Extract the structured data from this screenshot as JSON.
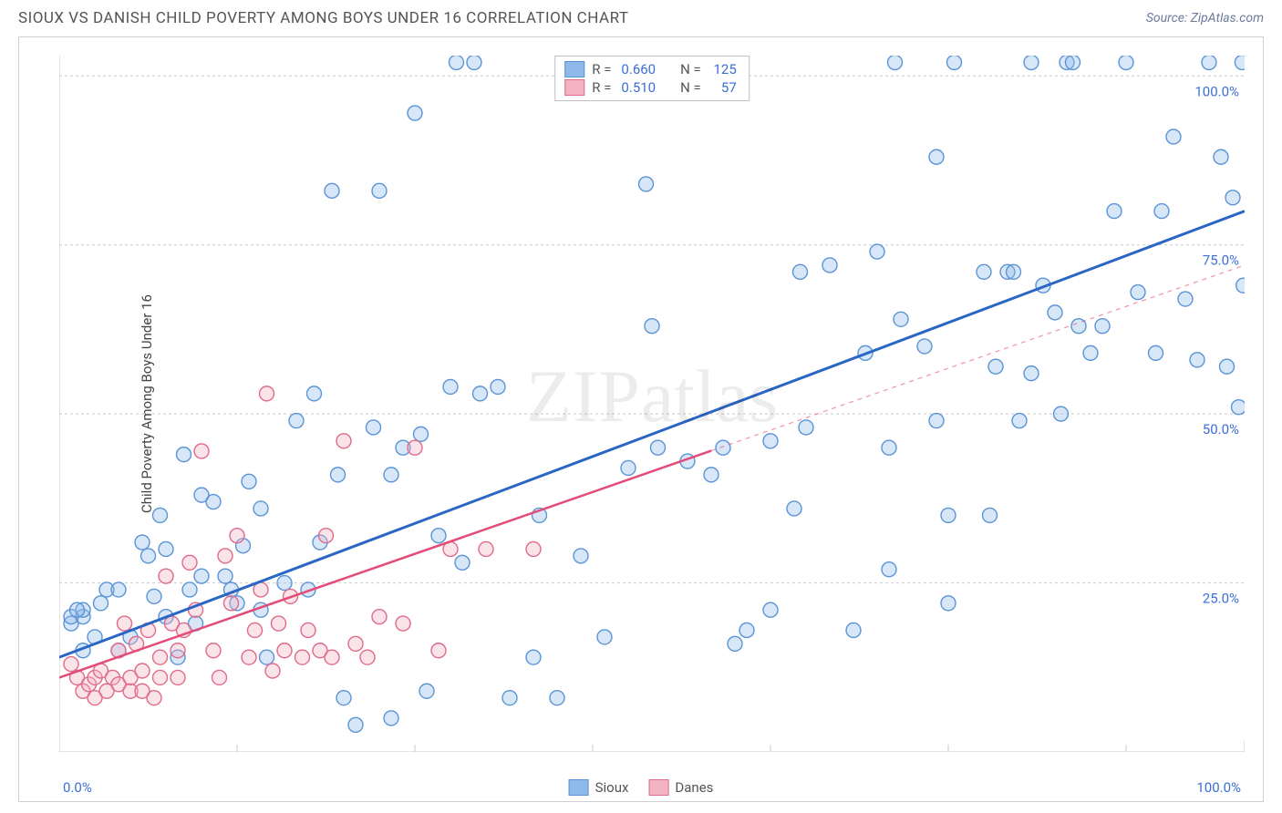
{
  "title": "SIOUX VS DANISH CHILD POVERTY AMONG BOYS UNDER 16 CORRELATION CHART",
  "source_label": "Source: ",
  "source_name": "ZipAtlas.com",
  "watermark": "ZIPatlas",
  "chart": {
    "type": "scatter",
    "ylabel": "Child Poverty Among Boys Under 16",
    "xlim": [
      0,
      100
    ],
    "ylim": [
      0,
      103
    ],
    "x_ticks": [
      0,
      100
    ],
    "x_tick_labels": [
      "0.0%",
      "100.0%"
    ],
    "x_minor_ticks": [
      15,
      30,
      45,
      60,
      75,
      90
    ],
    "y_gridlines": [
      25,
      50,
      75,
      100
    ],
    "y_tick_labels": [
      "25.0%",
      "50.0%",
      "75.0%",
      "100.0%"
    ],
    "background_color": "#ffffff",
    "grid_color": "#c9c9c9",
    "grid_dash": "3 3",
    "marker_radius": 8,
    "marker_fill_opacity": 0.35,
    "marker_stroke_width": 1.4,
    "series": [
      {
        "name": "Sioux",
        "color_fill": "#8fb9e8",
        "color_stroke": "#5a94d6",
        "line_color": "#2a66c4",
        "line_width": 3,
        "trend": {
          "x1": 0,
          "y1": 14,
          "x2": 100,
          "y2": 80
        },
        "trend_dashed_from_x": null,
        "R": "0.660",
        "N": "125",
        "points": [
          [
            1,
            19
          ],
          [
            1,
            20
          ],
          [
            2,
            20
          ],
          [
            2,
            21
          ],
          [
            1.5,
            21
          ],
          [
            2,
            15
          ],
          [
            3,
            17
          ],
          [
            3.5,
            22
          ],
          [
            4,
            24
          ],
          [
            5,
            24
          ],
          [
            5,
            15
          ],
          [
            6,
            17
          ],
          [
            7,
            31
          ],
          [
            7.5,
            29
          ],
          [
            8,
            23
          ],
          [
            8.5,
            35
          ],
          [
            9,
            20
          ],
          [
            9,
            30
          ],
          [
            10,
            14
          ],
          [
            10.5,
            44
          ],
          [
            11,
            24
          ],
          [
            11.5,
            19
          ],
          [
            12,
            26
          ],
          [
            12,
            38
          ],
          [
            13,
            37
          ],
          [
            14,
            26
          ],
          [
            14.5,
            24
          ],
          [
            15,
            22
          ],
          [
            15.5,
            30.5
          ],
          [
            16,
            40
          ],
          [
            17,
            21
          ],
          [
            17,
            36
          ],
          [
            17.5,
            14
          ],
          [
            19,
            25
          ],
          [
            20,
            49
          ],
          [
            21,
            24
          ],
          [
            21.5,
            53
          ],
          [
            22,
            31
          ],
          [
            23,
            83
          ],
          [
            23.5,
            41
          ],
          [
            24,
            8
          ],
          [
            25,
            4
          ],
          [
            26.5,
            48
          ],
          [
            27,
            83
          ],
          [
            28,
            5
          ],
          [
            28,
            41
          ],
          [
            29,
            45
          ],
          [
            30,
            94.5
          ],
          [
            30.5,
            47
          ],
          [
            31,
            9
          ],
          [
            32,
            32
          ],
          [
            33,
            54
          ],
          [
            33.5,
            102
          ],
          [
            34,
            28
          ],
          [
            35,
            102
          ],
          [
            35.5,
            53
          ],
          [
            37,
            54
          ],
          [
            38,
            8
          ],
          [
            40,
            14
          ],
          [
            40.5,
            35
          ],
          [
            42,
            8
          ],
          [
            43,
            102
          ],
          [
            44,
            29
          ],
          [
            45,
            102
          ],
          [
            46,
            17
          ],
          [
            48,
            42
          ],
          [
            49.5,
            84
          ],
          [
            50,
            63
          ],
          [
            50.5,
            45
          ],
          [
            53,
            43
          ],
          [
            55,
            41
          ],
          [
            56,
            45
          ],
          [
            57,
            16
          ],
          [
            58,
            18
          ],
          [
            60,
            46
          ],
          [
            62,
            36
          ],
          [
            62.5,
            71
          ],
          [
            63,
            48
          ],
          [
            65,
            72
          ],
          [
            67,
            18
          ],
          [
            68,
            59
          ],
          [
            69,
            74
          ],
          [
            70,
            45
          ],
          [
            70.5,
            102
          ],
          [
            71,
            64
          ],
          [
            73,
            60
          ],
          [
            74,
            49
          ],
          [
            74,
            88
          ],
          [
            75,
            35
          ],
          [
            75.5,
            102
          ],
          [
            78,
            71
          ],
          [
            78.5,
            35
          ],
          [
            79,
            57
          ],
          [
            80,
            71
          ],
          [
            80.5,
            71
          ],
          [
            81,
            49
          ],
          [
            82,
            56
          ],
          [
            82,
            102
          ],
          [
            83,
            69
          ],
          [
            84,
            65
          ],
          [
            84.5,
            50
          ],
          [
            85,
            102
          ],
          [
            85.5,
            102
          ],
          [
            86,
            63
          ],
          [
            87,
            59
          ],
          [
            88,
            63
          ],
          [
            89,
            80
          ],
          [
            90,
            102
          ],
          [
            91,
            68
          ],
          [
            92.5,
            59
          ],
          [
            93,
            80
          ],
          [
            94,
            91
          ],
          [
            95,
            67
          ],
          [
            96,
            58
          ],
          [
            97,
            102
          ],
          [
            98,
            88
          ],
          [
            98.5,
            57
          ],
          [
            99,
            82
          ],
          [
            99.5,
            51
          ],
          [
            99.8,
            102
          ],
          [
            99.9,
            69
          ],
          [
            75,
            22
          ],
          [
            70,
            27
          ],
          [
            60,
            21
          ],
          [
            44,
            102
          ]
        ]
      },
      {
        "name": "Danes",
        "color_fill": "#f3b3c1",
        "color_stroke": "#e06a8a",
        "line_color": "#e34b78",
        "line_width": 2.5,
        "trend": {
          "x1": 0,
          "y1": 11,
          "x2": 100,
          "y2": 72
        },
        "trend_dashed_from_x": 55,
        "R": "0.510",
        "N": "57",
        "points": [
          [
            1,
            13
          ],
          [
            1.5,
            11
          ],
          [
            2,
            9
          ],
          [
            2.5,
            10
          ],
          [
            3,
            8
          ],
          [
            3,
            11
          ],
          [
            3.5,
            12
          ],
          [
            4,
            9
          ],
          [
            4.5,
            11
          ],
          [
            5,
            10
          ],
          [
            5,
            15
          ],
          [
            5.5,
            19
          ],
          [
            6,
            9
          ],
          [
            6,
            11
          ],
          [
            6.5,
            16
          ],
          [
            7,
            9
          ],
          [
            7,
            12
          ],
          [
            7.5,
            18
          ],
          [
            8,
            8
          ],
          [
            8.5,
            11
          ],
          [
            8.5,
            14
          ],
          [
            9,
            26
          ],
          [
            9.5,
            19
          ],
          [
            10,
            11
          ],
          [
            10,
            15
          ],
          [
            10.5,
            18
          ],
          [
            11,
            28
          ],
          [
            11.5,
            21
          ],
          [
            12,
            44.5
          ],
          [
            13,
            15
          ],
          [
            13.5,
            11
          ],
          [
            14,
            29
          ],
          [
            14.5,
            22
          ],
          [
            15,
            32
          ],
          [
            16,
            14
          ],
          [
            16.5,
            18
          ],
          [
            17,
            24
          ],
          [
            17.5,
            53
          ],
          [
            18,
            12
          ],
          [
            18.5,
            19
          ],
          [
            19,
            15
          ],
          [
            19.5,
            23
          ],
          [
            20.5,
            14
          ],
          [
            21,
            18
          ],
          [
            22,
            15
          ],
          [
            22.5,
            32
          ],
          [
            23,
            14
          ],
          [
            24,
            46
          ],
          [
            25,
            16
          ],
          [
            26,
            14
          ],
          [
            27,
            20
          ],
          [
            29,
            19
          ],
          [
            30,
            45
          ],
          [
            32,
            15
          ],
          [
            33,
            30
          ],
          [
            36,
            30
          ],
          [
            40,
            30
          ]
        ]
      }
    ],
    "legend_bottom": [
      {
        "label": "Sioux",
        "fill": "#8fb9e8",
        "stroke": "#5a94d6"
      },
      {
        "label": "Danes",
        "fill": "#f3b3c1",
        "stroke": "#e06a8a"
      }
    ]
  }
}
